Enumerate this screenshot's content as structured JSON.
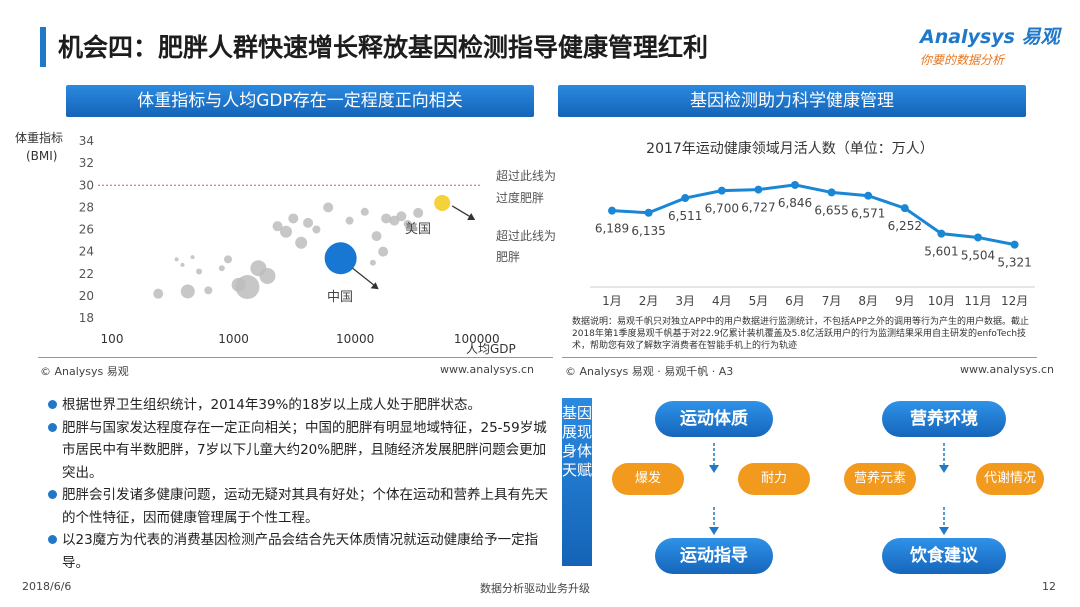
{
  "title": "机会四：肥胖人群快速增长释放基因检测指导健康管理红利",
  "logo": {
    "main": "Analysys 易观",
    "sub": "你要的数据分析"
  },
  "left_panel": {
    "header": "体重指标与人均GDP存在一定程度正向相关",
    "annotations": {
      "overweight": [
        "超过此线为",
        "过度肥胖"
      ],
      "obese": [
        "超过此线为",
        "肥胖"
      ],
      "usa": "美国",
      "china": "中国"
    },
    "source": "© Analysys 易观",
    "url": "www.analysys.cn"
  },
  "right_panel": {
    "header": "基因检测助力科学健康管理",
    "note": "数据说明：易观千帆只对独立APP中的用户数据进行监测统计，不包括APP之外的调用等行为产生的用户数据。截止2018年第1季度易观千帆基于对22.9亿累计装机覆盖及5.8亿活跃用户的行为监测结果采用自主研发的enfoTech技术，帮助您有效了解数字消费者在智能手机上的行为轨迹",
    "source": "© Analysys 易观 · 易观千帆 · A3",
    "url": "www.analysys.cn"
  },
  "chart_data": [
    {
      "type": "scatter",
      "title": "",
      "xlabel": "人均GDP",
      "ylabel": "体重指标(BMI)",
      "xscale": "log",
      "xlim": [
        100,
        100000
      ],
      "ylim": [
        18,
        34
      ],
      "x_ticks": [
        "100",
        "1000",
        "10000",
        "100000"
      ],
      "y_ticks": [
        "18",
        "20",
        "22",
        "24",
        "26",
        "28",
        "30",
        "32",
        "34"
      ],
      "reference_lines": [
        {
          "y": 30,
          "style": "dashed",
          "color": "#d9534f"
        }
      ],
      "series": [
        {
          "name": "美国",
          "points": [
            {
              "x": 52000,
              "y": 28.4,
              "size": 8,
              "color": "#f5d13a"
            }
          ]
        },
        {
          "name": "中国",
          "points": [
            {
              "x": 7600,
              "y": 23.4,
              "size": 16,
              "color": "#1877d2"
            }
          ]
        },
        {
          "points": [
            {
              "x": 240,
              "y": 20.2,
              "size": 5
            },
            {
              "x": 340,
              "y": 23.3,
              "size": 2
            },
            {
              "x": 380,
              "y": 22.8,
              "size": 2
            },
            {
              "x": 420,
              "y": 20.4,
              "size": 7
            },
            {
              "x": 460,
              "y": 23.5,
              "size": 2
            },
            {
              "x": 520,
              "y": 22.2,
              "size": 3
            },
            {
              "x": 620,
              "y": 20.5,
              "size": 4
            },
            {
              "x": 800,
              "y": 22.5,
              "size": 3
            },
            {
              "x": 900,
              "y": 23.3,
              "size": 4
            },
            {
              "x": 1100,
              "y": 21.0,
              "size": 7
            },
            {
              "x": 1300,
              "y": 20.8,
              "size": 12
            },
            {
              "x": 1600,
              "y": 22.5,
              "size": 8
            },
            {
              "x": 1900,
              "y": 21.8,
              "size": 8
            },
            {
              "x": 2300,
              "y": 26.3,
              "size": 5
            },
            {
              "x": 2700,
              "y": 25.8,
              "size": 6
            },
            {
              "x": 3100,
              "y": 27.0,
              "size": 5
            },
            {
              "x": 3600,
              "y": 24.8,
              "size": 6
            },
            {
              "x": 4100,
              "y": 26.6,
              "size": 5
            },
            {
              "x": 4800,
              "y": 26.0,
              "size": 4
            },
            {
              "x": 6000,
              "y": 28.0,
              "size": 5
            },
            {
              "x": 9000,
              "y": 26.8,
              "size": 4
            },
            {
              "x": 12000,
              "y": 27.6,
              "size": 4
            },
            {
              "x": 15000,
              "y": 25.4,
              "size": 5
            },
            {
              "x": 18000,
              "y": 27.0,
              "size": 5
            },
            {
              "x": 21000,
              "y": 26.8,
              "size": 5
            },
            {
              "x": 24000,
              "y": 27.2,
              "size": 5
            },
            {
              "x": 27000,
              "y": 26.5,
              "size": 4
            },
            {
              "x": 33000,
              "y": 27.5,
              "size": 5
            },
            {
              "x": 17000,
              "y": 24.0,
              "size": 5
            },
            {
              "x": 14000,
              "y": 23.0,
              "size": 3
            }
          ]
        }
      ]
    },
    {
      "type": "line",
      "title": "2017年运动健康领域月活人数（单位：万人）",
      "categories": [
        "1月",
        "2月",
        "3月",
        "4月",
        "5月",
        "6月",
        "7月",
        "8月",
        "9月",
        "10月",
        "11月",
        "12月"
      ],
      "series": [
        {
          "values": [
            6189,
            6135,
            6511,
            6700,
            6727,
            6846,
            6655,
            6571,
            6252,
            5601,
            5504,
            5321
          ],
          "labels": [
            "6,189",
            "6,135",
            "6,511",
            "6,700",
            "6,727",
            "6,846",
            "6,655",
            "6,571",
            "6,252",
            "5,601",
            "5,504",
            "5,321"
          ],
          "color": "#1a86d6"
        }
      ]
    }
  ],
  "bullets": [
    "根据世界卫生组织统计，2014年39%的18岁以上成人处于肥胖状态。",
    "肥胖与国家发达程度存在一定正向相关；中国的肥胖有明显地域特征，25-59岁城市居民中有半数肥胖，7岁以下儿童大约20%肥胖，且随经济发展肥胖问题会更加突出。",
    "肥胖会引发诸多健康问题，运动无疑对其具有好处；个体在运动和营养上具有先天的个性特征，因而健康管理属于个性工程。",
    "以23魔方为代表的消费基因检测产品会结合先天体质情况就运动健康给予一定指导。"
  ],
  "diagram": {
    "vertical_title": "基因展现身体天赋",
    "left": {
      "top": "运动体质",
      "items": [
        "爆发",
        "耐力"
      ],
      "bottom": "运动指导"
    },
    "right": {
      "top": "营养环境",
      "items": [
        "营养元素",
        "代谢情况"
      ],
      "bottom": "饮食建议"
    },
    "accent": "#1f78c8",
    "item_color": "#f19a1e"
  },
  "footer": {
    "date": "2018/6/6",
    "center": "数据分析驱动业务升级",
    "page": "12"
  }
}
